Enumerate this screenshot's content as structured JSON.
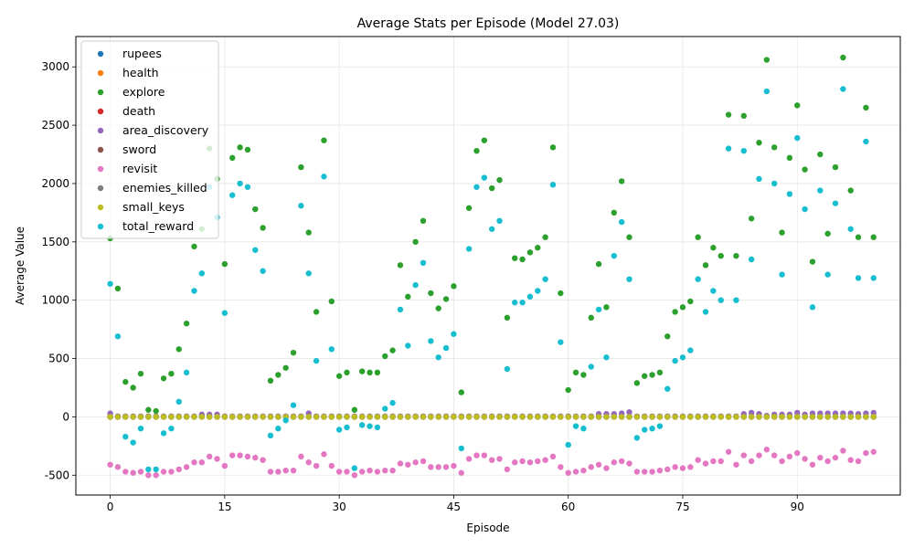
{
  "chart_data": {
    "type": "scatter",
    "title": "Average Stats per Episode (Model 27.03)",
    "xlabel": "Episode",
    "ylabel": "Average Value",
    "xlim": [
      -4.5,
      103.5
    ],
    "ylim": [
      -670,
      3260
    ],
    "xticks": [
      0,
      15,
      30,
      45,
      60,
      75,
      90
    ],
    "yticks": [
      -500,
      0,
      500,
      1000,
      1500,
      2000,
      2500,
      3000
    ],
    "grid": true,
    "legend_position": "top-left",
    "series": [
      {
        "name": "rupees",
        "color": "#1f77b4",
        "values": [
          0,
          0,
          0,
          0,
          0,
          0,
          0,
          0,
          0,
          0,
          0,
          0,
          0,
          0,
          0,
          0,
          0,
          0,
          0,
          0,
          0,
          0,
          0,
          0,
          0,
          0,
          0,
          0,
          0,
          0,
          0,
          0,
          0,
          0,
          0,
          0,
          0,
          0,
          0,
          0,
          0,
          0,
          0,
          0,
          0,
          0,
          0,
          0,
          0,
          0,
          0,
          0,
          0,
          0,
          0,
          0,
          0,
          0,
          0,
          0,
          0,
          0,
          0,
          0,
          0,
          0,
          0,
          0,
          0,
          0,
          0,
          0,
          0,
          0,
          0,
          0,
          0,
          0,
          0,
          0,
          0,
          0,
          0,
          0,
          0,
          0,
          0,
          0,
          0,
          0,
          0,
          0,
          0,
          0,
          0,
          0,
          0,
          0,
          0,
          0,
          0
        ]
      },
      {
        "name": "health",
        "color": "#ff7f0e",
        "values": [
          0,
          0,
          0,
          0,
          0,
          0,
          0,
          0,
          0,
          0,
          0,
          0,
          0,
          0,
          0,
          0,
          0,
          0,
          0,
          0,
          0,
          0,
          0,
          0,
          0,
          0,
          0,
          0,
          0,
          0,
          0,
          0,
          0,
          0,
          0,
          0,
          0,
          0,
          0,
          0,
          0,
          0,
          0,
          0,
          0,
          0,
          0,
          0,
          0,
          0,
          0,
          0,
          0,
          0,
          0,
          0,
          0,
          0,
          0,
          0,
          0,
          0,
          0,
          0,
          0,
          0,
          0,
          0,
          0,
          0,
          0,
          0,
          0,
          0,
          0,
          0,
          0,
          0,
          0,
          0,
          0,
          0,
          0,
          0,
          0,
          0,
          0,
          0,
          0,
          0,
          0,
          0,
          0,
          0,
          0,
          0,
          0,
          0,
          0,
          0,
          0
        ]
      },
      {
        "name": "explore",
        "color": "#2ca02c",
        "values": [
          1530,
          1100,
          300,
          250,
          370,
          60,
          50,
          330,
          370,
          580,
          800,
          1460,
          1610,
          2300,
          2040,
          1310,
          2220,
          2310,
          2290,
          1780,
          1620,
          310,
          360,
          420,
          550,
          2140,
          1580,
          900,
          2370,
          990,
          350,
          380,
          60,
          390,
          380,
          380,
          520,
          570,
          1300,
          1030,
          1500,
          1680,
          1060,
          930,
          1010,
          1120,
          210,
          1790,
          2280,
          2370,
          1960,
          2030,
          850,
          1360,
          1350,
          1410,
          1450,
          1540,
          2310,
          1060,
          230,
          380,
          360,
          850,
          1310,
          940,
          1750,
          2020,
          1540,
          290,
          350,
          360,
          380,
          690,
          900,
          940,
          990,
          1540,
          1300,
          1450,
          1380,
          2590,
          1380,
          2580,
          1700,
          2350,
          3060,
          2310,
          1580,
          2220,
          2670,
          2120,
          1330,
          2250,
          1570,
          2140,
          3080,
          1940,
          1540,
          2650,
          1540
        ]
      },
      {
        "name": "death",
        "color": "#d62728",
        "values": [
          0,
          0,
          0,
          0,
          0,
          0,
          0,
          0,
          0,
          0,
          0,
          0,
          0,
          0,
          0,
          0,
          0,
          0,
          0,
          0,
          0,
          0,
          0,
          0,
          0,
          0,
          0,
          0,
          0,
          0,
          0,
          0,
          0,
          0,
          0,
          0,
          0,
          0,
          0,
          0,
          0,
          0,
          0,
          0,
          0,
          0,
          0,
          0,
          0,
          0,
          0,
          0,
          0,
          0,
          0,
          0,
          0,
          0,
          0,
          0,
          0,
          0,
          0,
          0,
          0,
          0,
          0,
          0,
          0,
          0,
          0,
          0,
          0,
          0,
          0,
          0,
          0,
          0,
          0,
          0,
          0,
          0,
          0,
          0,
          0,
          0,
          0,
          0,
          0,
          0,
          0,
          0,
          0,
          0,
          0,
          0,
          0,
          0,
          0,
          0,
          0
        ]
      },
      {
        "name": "area_discovery",
        "color": "#9467bd",
        "values": [
          30,
          5,
          5,
          5,
          5,
          5,
          5,
          5,
          5,
          5,
          5,
          5,
          20,
          20,
          20,
          5,
          5,
          5,
          5,
          5,
          5,
          5,
          5,
          5,
          5,
          5,
          30,
          5,
          5,
          5,
          5,
          5,
          5,
          5,
          5,
          5,
          5,
          5,
          5,
          5,
          5,
          5,
          5,
          5,
          5,
          5,
          5,
          5,
          5,
          5,
          5,
          5,
          5,
          5,
          5,
          5,
          5,
          5,
          5,
          5,
          5,
          5,
          5,
          5,
          25,
          25,
          25,
          30,
          40,
          5,
          5,
          5,
          5,
          5,
          5,
          5,
          5,
          5,
          5,
          5,
          5,
          5,
          5,
          25,
          35,
          25,
          10,
          20,
          20,
          20,
          35,
          20,
          30,
          30,
          30,
          30,
          30,
          30,
          25,
          30,
          35
        ]
      },
      {
        "name": "sword",
        "color": "#8c564b",
        "values": [
          0,
          0,
          0,
          0,
          0,
          0,
          0,
          0,
          0,
          0,
          0,
          0,
          0,
          0,
          0,
          0,
          0,
          0,
          0,
          0,
          0,
          0,
          0,
          0,
          0,
          0,
          0,
          0,
          0,
          0,
          0,
          0,
          0,
          0,
          0,
          0,
          0,
          0,
          0,
          0,
          0,
          0,
          0,
          0,
          0,
          0,
          0,
          0,
          0,
          0,
          0,
          0,
          0,
          0,
          0,
          0,
          0,
          0,
          0,
          0,
          0,
          0,
          0,
          0,
          0,
          0,
          0,
          0,
          0,
          0,
          0,
          0,
          0,
          0,
          0,
          0,
          0,
          0,
          0,
          0,
          0,
          0,
          0,
          0,
          0,
          0,
          0,
          0,
          0,
          0,
          0,
          0,
          0,
          0,
          0,
          0,
          0,
          0,
          0,
          0,
          0
        ]
      },
      {
        "name": "revisit",
        "color": "#e377c2",
        "values": [
          -410,
          -430,
          -470,
          -480,
          -470,
          -500,
          -500,
          -470,
          -470,
          -450,
          -430,
          -390,
          -390,
          -340,
          -360,
          -420,
          -330,
          -330,
          -340,
          -350,
          -370,
          -470,
          -470,
          -460,
          -460,
          -340,
          -390,
          -420,
          -320,
          -420,
          -470,
          -470,
          -500,
          -470,
          -460,
          -470,
          -460,
          -460,
          -400,
          -410,
          -390,
          -380,
          -430,
          -430,
          -430,
          -420,
          -480,
          -360,
          -330,
          -330,
          -370,
          -360,
          -450,
          -390,
          -380,
          -390,
          -380,
          -370,
          -340,
          -430,
          -480,
          -470,
          -460,
          -430,
          -410,
          -440,
          -390,
          -380,
          -400,
          -470,
          -470,
          -470,
          -460,
          -450,
          -430,
          -440,
          -430,
          -370,
          -400,
          -380,
          -380,
          -300,
          -410,
          -330,
          -380,
          -330,
          -280,
          -330,
          -380,
          -340,
          -310,
          -360,
          -410,
          -350,
          -380,
          -350,
          -290,
          -370,
          -380,
          -310,
          -300
        ]
      },
      {
        "name": "enemies_killed",
        "color": "#7f7f7f",
        "values": [
          0,
          0,
          0,
          0,
          0,
          0,
          0,
          0,
          0,
          0,
          0,
          0,
          0,
          0,
          0,
          0,
          0,
          0,
          0,
          0,
          0,
          0,
          0,
          0,
          0,
          0,
          0,
          0,
          0,
          0,
          0,
          0,
          0,
          0,
          0,
          0,
          0,
          0,
          0,
          0,
          0,
          0,
          0,
          0,
          0,
          0,
          0,
          0,
          0,
          0,
          0,
          0,
          0,
          0,
          0,
          0,
          0,
          0,
          0,
          0,
          0,
          0,
          0,
          0,
          0,
          0,
          0,
          0,
          0,
          0,
          0,
          0,
          0,
          0,
          0,
          0,
          0,
          0,
          0,
          0,
          0,
          0,
          0,
          0,
          0,
          0,
          0,
          0,
          0,
          0,
          0,
          0,
          0,
          0,
          0,
          0,
          0,
          0,
          0,
          0,
          0
        ]
      },
      {
        "name": "small_keys",
        "color": "#bcbd22",
        "values": [
          0,
          0,
          0,
          0,
          0,
          0,
          0,
          0,
          0,
          0,
          0,
          0,
          0,
          0,
          0,
          0,
          0,
          0,
          0,
          0,
          0,
          0,
          0,
          0,
          0,
          0,
          0,
          0,
          0,
          0,
          0,
          0,
          0,
          0,
          0,
          0,
          0,
          0,
          0,
          0,
          0,
          0,
          0,
          0,
          0,
          0,
          0,
          0,
          0,
          0,
          0,
          0,
          0,
          0,
          0,
          0,
          0,
          0,
          0,
          0,
          0,
          0,
          0,
          0,
          0,
          0,
          0,
          0,
          0,
          0,
          0,
          0,
          0,
          0,
          0,
          0,
          0,
          0,
          0,
          0,
          0,
          0,
          0,
          0,
          0,
          0,
          0,
          0,
          0,
          0,
          0,
          0,
          0,
          0,
          0,
          0,
          0,
          0,
          0,
          0,
          0
        ]
      },
      {
        "name": "total_reward",
        "color": "#17becf",
        "values": [
          1140,
          690,
          -170,
          -220,
          -100,
          -450,
          -450,
          -140,
          -100,
          130,
          380,
          1080,
          1230,
          1970,
          1710,
          890,
          1900,
          2000,
          1970,
          1430,
          1250,
          -160,
          -100,
          -30,
          100,
          1810,
          1230,
          480,
          2060,
          580,
          -110,
          -90,
          -440,
          -70,
          -80,
          -90,
          70,
          120,
          920,
          610,
          1130,
          1320,
          650,
          510,
          590,
          710,
          -270,
          1440,
          1970,
          2050,
          1610,
          1680,
          410,
          980,
          980,
          1030,
          1080,
          1180,
          1990,
          640,
          -240,
          -80,
          -100,
          430,
          920,
          510,
          1380,
          1670,
          1180,
          -180,
          -110,
          -100,
          -80,
          240,
          480,
          510,
          570,
          1180,
          900,
          1080,
          1000,
          2300,
          1000,
          2280,
          1350,
          2040,
          2790,
          2000,
          1220,
          1910,
          2390,
          1780,
          940,
          1940,
          1220,
          1830,
          2810,
          1610,
          1190,
          2360,
          1190
        ]
      }
    ]
  }
}
